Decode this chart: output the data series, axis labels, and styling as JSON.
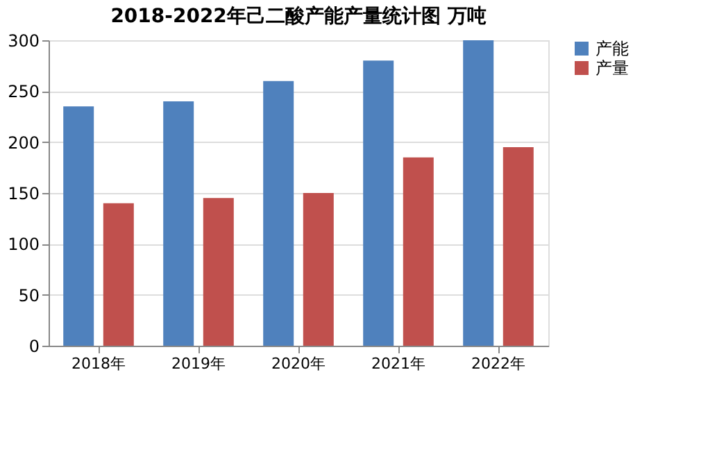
{
  "chart_data": {
    "type": "bar",
    "title": "2018-2022年己二酸产能产量统计图 万吨",
    "categories": [
      "2018年",
      "2019年",
      "2020年",
      "2021年",
      "2022年"
    ],
    "series": [
      {
        "name": "产能",
        "color": "#4f81bd",
        "values": [
          235,
          240,
          260,
          280,
          300
        ]
      },
      {
        "name": "产量",
        "color": "#c0504d",
        "values": [
          140,
          145,
          150,
          185,
          195
        ]
      }
    ],
    "ylim": [
      0,
      300
    ],
    "yticks": [
      0,
      50,
      100,
      150,
      200,
      250,
      300
    ],
    "grid": "y",
    "legend": "right"
  }
}
